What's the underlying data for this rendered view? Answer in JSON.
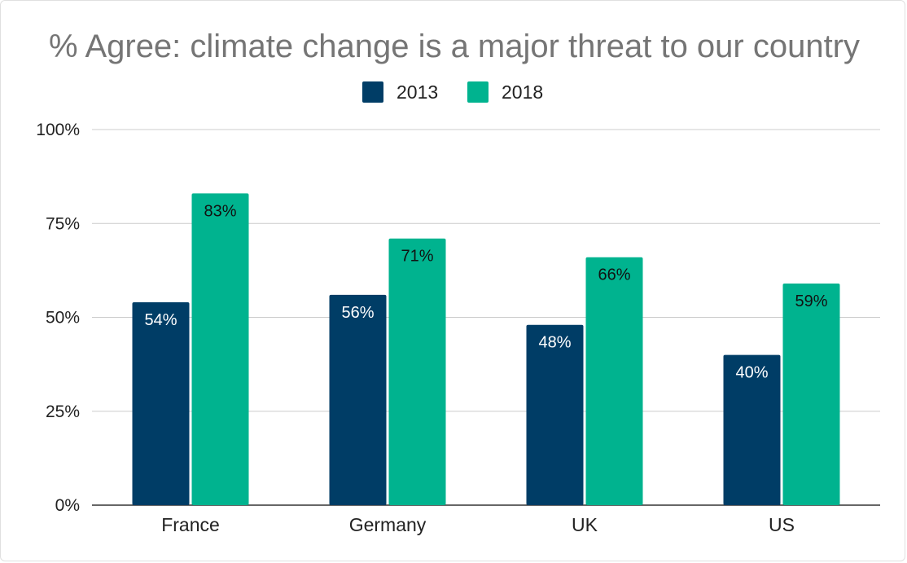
{
  "chart_data": {
    "type": "bar",
    "title": "% Agree: climate change is a major threat to our country",
    "categories": [
      "France",
      "Germany",
      "UK",
      "US"
    ],
    "series": [
      {
        "name": "2013",
        "color": "#003d66",
        "label_color": "#ffffff",
        "values": [
          54,
          56,
          48,
          40
        ]
      },
      {
        "name": "2018",
        "color": "#00b38f",
        "label_color": "#111111",
        "values": [
          83,
          71,
          66,
          59
        ]
      }
    ],
    "data_labels": [
      [
        "54%",
        "56%",
        "48%",
        "40%"
      ],
      [
        "83%",
        "71%",
        "66%",
        "59%"
      ]
    ],
    "yticks": [
      0,
      25,
      50,
      75,
      100
    ],
    "ytick_labels": [
      "0%",
      "25%",
      "50%",
      "75%",
      "100%"
    ],
    "ylim": [
      0,
      100
    ],
    "xlabel": "",
    "ylabel": "",
    "grid": true,
    "legend_position": "top-center"
  }
}
